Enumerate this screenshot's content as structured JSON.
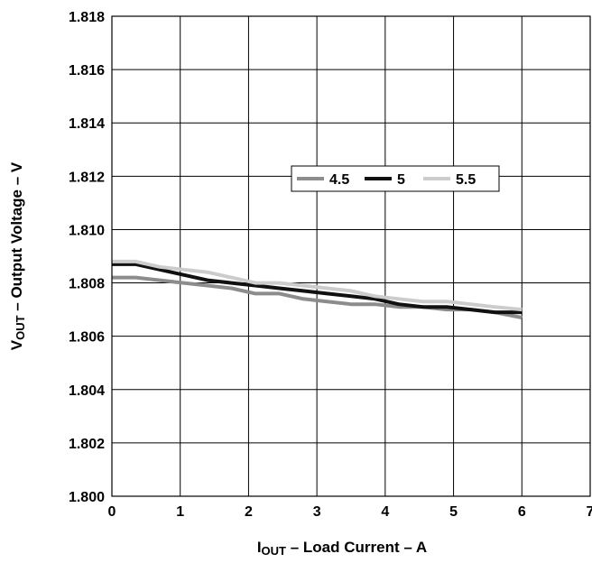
{
  "chart_data": {
    "type": "line",
    "title": "",
    "xlabel": {
      "main": "I",
      "sub": "OUT",
      "rest": " – Load Current – A"
    },
    "ylabel": {
      "main": "V",
      "sub": "OUT",
      "rest": " – Output Voltage – V"
    },
    "xlim": [
      0,
      7
    ],
    "ylim": [
      1.8,
      1.818
    ],
    "xticks": [
      "0",
      "1",
      "2",
      "3",
      "4",
      "5",
      "6",
      "7"
    ],
    "yticks": [
      "1.800",
      "1.802",
      "1.804",
      "1.806",
      "1.808",
      "1.810",
      "1.812",
      "1.814",
      "1.816",
      "1.818"
    ],
    "grid": true,
    "legend": {
      "placement": "center-right"
    },
    "series": [
      {
        "name": "4.5",
        "color": "#8c8c8c",
        "points": [
          [
            0,
            1.8082
          ],
          [
            0.35,
            1.8082
          ],
          [
            0.7,
            1.8081
          ],
          [
            1.05,
            1.808
          ],
          [
            1.4,
            1.8079
          ],
          [
            1.75,
            1.8078
          ],
          [
            2.1,
            1.8076
          ],
          [
            2.45,
            1.8076
          ],
          [
            2.8,
            1.8074
          ],
          [
            3.15,
            1.8073
          ],
          [
            3.5,
            1.8072
          ],
          [
            3.85,
            1.8072
          ],
          [
            4.2,
            1.8071
          ],
          [
            4.55,
            1.8071
          ],
          [
            4.9,
            1.807
          ],
          [
            5.25,
            1.807
          ],
          [
            5.6,
            1.8069
          ],
          [
            6.0,
            1.8067
          ]
        ]
      },
      {
        "name": "5",
        "color": "#111111",
        "points": [
          [
            0,
            1.8087
          ],
          [
            0.35,
            1.8087
          ],
          [
            0.7,
            1.8085
          ],
          [
            1.05,
            1.8083
          ],
          [
            1.4,
            1.8081
          ],
          [
            1.75,
            1.808
          ],
          [
            2.1,
            1.8079
          ],
          [
            2.45,
            1.8078
          ],
          [
            2.8,
            1.8077
          ],
          [
            3.15,
            1.8076
          ],
          [
            3.5,
            1.8075
          ],
          [
            3.85,
            1.8074
          ],
          [
            4.2,
            1.8072
          ],
          [
            4.55,
            1.8071
          ],
          [
            4.9,
            1.8071
          ],
          [
            5.25,
            1.807
          ],
          [
            5.6,
            1.8069
          ],
          [
            6.0,
            1.8069
          ]
        ]
      },
      {
        "name": "5.5",
        "color": "#cccccc",
        "points": [
          [
            0,
            1.8088
          ],
          [
            0.35,
            1.8088
          ],
          [
            0.7,
            1.8086
          ],
          [
            1.05,
            1.8085
          ],
          [
            1.4,
            1.8084
          ],
          [
            1.75,
            1.8082
          ],
          [
            2.1,
            1.808
          ],
          [
            2.45,
            1.808
          ],
          [
            2.8,
            1.8079
          ],
          [
            3.15,
            1.8078
          ],
          [
            3.5,
            1.8077
          ],
          [
            3.85,
            1.8075
          ],
          [
            4.2,
            1.8074
          ],
          [
            4.55,
            1.8073
          ],
          [
            4.9,
            1.8073
          ],
          [
            5.25,
            1.8072
          ],
          [
            5.6,
            1.8071
          ],
          [
            6.0,
            1.807
          ]
        ]
      }
    ]
  }
}
